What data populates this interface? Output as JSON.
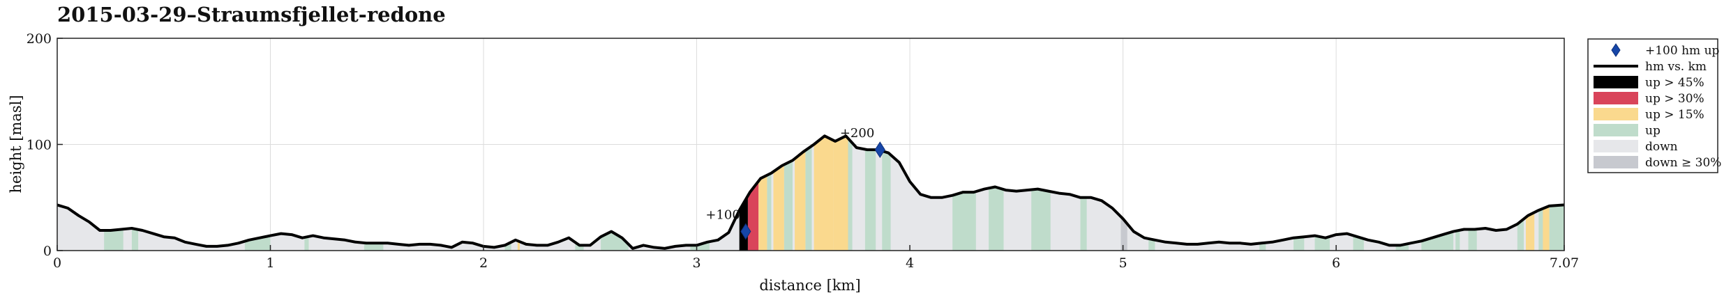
{
  "chart_data": {
    "type": "area",
    "title": "2015-03-29–Straumsfjellet-redone",
    "xlabel": "distance [km]",
    "ylabel": "height [masl]",
    "xlim": [
      0,
      7.07
    ],
    "ylim": [
      0,
      200
    ],
    "xticks": [
      {
        "value": 0,
        "label": "0"
      },
      {
        "value": 1,
        "label": "1"
      },
      {
        "value": 2,
        "label": "2"
      },
      {
        "value": 3,
        "label": "3"
      },
      {
        "value": 4,
        "label": "4"
      },
      {
        "value": 5,
        "label": "5"
      },
      {
        "value": 6,
        "label": "6"
      },
      {
        "value": 7.07,
        "label": "7.07"
      }
    ],
    "yticks": [
      {
        "value": 0,
        "label": "0"
      },
      {
        "value": 100,
        "label": "100"
      },
      {
        "value": 200,
        "label": "200"
      }
    ],
    "grid": true,
    "legend_position": "outside-right",
    "colors": {
      "line": "#000000",
      "up_gt_45": "#000000",
      "up_gt_30": "#d9445a",
      "up_gt_15": "#fad98e",
      "up": "#bfdccb",
      "down": "#e6e7ea",
      "down_ge_30": "#c7c9cf",
      "marker": "#1646a8"
    },
    "profile": {
      "x": [
        0,
        0.05,
        0.1,
        0.15,
        0.2,
        0.25,
        0.3,
        0.35,
        0.4,
        0.45,
        0.5,
        0.55,
        0.6,
        0.65,
        0.7,
        0.75,
        0.8,
        0.85,
        0.9,
        0.95,
        1.0,
        1.05,
        1.1,
        1.15,
        1.2,
        1.25,
        1.3,
        1.35,
        1.4,
        1.45,
        1.5,
        1.55,
        1.6,
        1.65,
        1.7,
        1.75,
        1.8,
        1.85,
        1.9,
        1.95,
        2.0,
        2.05,
        2.1,
        2.15,
        2.2,
        2.25,
        2.3,
        2.35,
        2.4,
        2.45,
        2.5,
        2.55,
        2.6,
        2.65,
        2.7,
        2.75,
        2.8,
        2.85,
        2.9,
        2.95,
        3.0,
        3.05,
        3.1,
        3.15,
        3.2,
        3.25,
        3.3,
        3.35,
        3.4,
        3.45,
        3.5,
        3.55,
        3.6,
        3.65,
        3.7,
        3.75,
        3.8,
        3.85,
        3.9,
        3.95,
        4.0,
        4.05,
        4.1,
        4.15,
        4.2,
        4.25,
        4.3,
        4.35,
        4.4,
        4.45,
        4.5,
        4.55,
        4.6,
        4.65,
        4.7,
        4.75,
        4.8,
        4.85,
        4.9,
        4.95,
        5.0,
        5.05,
        5.1,
        5.15,
        5.2,
        5.25,
        5.3,
        5.35,
        5.4,
        5.45,
        5.5,
        5.55,
        5.6,
        5.65,
        5.7,
        5.75,
        5.8,
        5.85,
        5.9,
        5.95,
        6.0,
        6.05,
        6.1,
        6.15,
        6.2,
        6.25,
        6.3,
        6.35,
        6.4,
        6.45,
        6.5,
        6.55,
        6.6,
        6.65,
        6.7,
        6.75,
        6.8,
        6.85,
        6.9,
        6.95,
        7.0,
        7.07
      ],
      "y": [
        43,
        40,
        33,
        27,
        19,
        19,
        20,
        21,
        19,
        16,
        13,
        12,
        8,
        6,
        4,
        4,
        5,
        7,
        10,
        12,
        14,
        16,
        15,
        12,
        14,
        12,
        11,
        10,
        8,
        7,
        7,
        7,
        6,
        5,
        6,
        6,
        5,
        3,
        8,
        7,
        4,
        3,
        5,
        10,
        6,
        5,
        5,
        8,
        12,
        5,
        5,
        13,
        18,
        12,
        2,
        5,
        3,
        2,
        4,
        5,
        5,
        8,
        10,
        17,
        38,
        55,
        68,
        73,
        80,
        85,
        93,
        100,
        108,
        103,
        108,
        97,
        95,
        95,
        92,
        83,
        65,
        53,
        50,
        50,
        52,
        55,
        55,
        58,
        60,
        57,
        56,
        57,
        58,
        56,
        54,
        53,
        50,
        50,
        47,
        40,
        30,
        18,
        12,
        10,
        8,
        7,
        6,
        6,
        7,
        8,
        7,
        7,
        6,
        7,
        8,
        10,
        12,
        13,
        14,
        12,
        15,
        16,
        13,
        10,
        8,
        5,
        5,
        7,
        9,
        12,
        15,
        18,
        20,
        20,
        21,
        19,
        20,
        25,
        33,
        38,
        42,
        43
      ]
    },
    "bands": [
      {
        "category": "up",
        "ranges": [
          [
            0.22,
            0.31
          ],
          [
            0.35,
            0.38
          ],
          [
            0.88,
            1.0
          ],
          [
            1.16,
            1.18
          ],
          [
            1.44,
            1.53
          ],
          [
            2.1,
            2.13
          ],
          [
            2.43,
            2.47
          ],
          [
            2.55,
            2.68
          ],
          [
            2.97,
            3.06
          ],
          [
            3.33,
            3.35
          ],
          [
            3.41,
            3.45
          ],
          [
            3.51,
            3.54
          ],
          [
            3.71,
            3.73
          ],
          [
            3.79,
            3.84
          ],
          [
            3.87,
            3.91
          ],
          [
            4.2,
            4.31
          ],
          [
            4.37,
            4.44
          ],
          [
            4.57,
            4.66
          ],
          [
            4.8,
            4.83
          ],
          [
            5.12,
            5.15
          ],
          [
            5.64,
            5.67
          ],
          [
            5.8,
            5.85
          ],
          [
            5.9,
            5.97
          ],
          [
            6.08,
            6.13
          ],
          [
            6.28,
            6.34
          ],
          [
            6.4,
            6.55
          ],
          [
            6.56,
            6.58
          ],
          [
            6.62,
            6.66
          ],
          [
            6.85,
            6.88
          ],
          [
            6.95,
            6.97
          ],
          [
            7.0,
            7.07
          ]
        ]
      },
      {
        "category": "up_gt_15",
        "ranges": [
          [
            2.16,
            2.17
          ],
          [
            3.29,
            3.33
          ],
          [
            3.36,
            3.41
          ],
          [
            3.46,
            3.51
          ],
          [
            3.55,
            3.64
          ],
          [
            3.64,
            3.71
          ],
          [
            6.89,
            6.93
          ],
          [
            6.97,
            7.0
          ]
        ]
      },
      {
        "category": "up_gt_30",
        "ranges": [
          [
            3.24,
            3.29
          ]
        ]
      },
      {
        "category": "up_gt_45",
        "ranges": [
          [
            3.2,
            3.24
          ]
        ]
      },
      {
        "category": "down_ge_30",
        "ranges": [
          [
            4.99,
            5.02
          ]
        ]
      }
    ],
    "markers": [
      {
        "x": 3.23,
        "y": 18,
        "label": "+100"
      },
      {
        "x": 3.86,
        "y": 95,
        "label": "+200"
      }
    ],
    "legend": [
      {
        "key": "marker",
        "label": "+100 hm up"
      },
      {
        "key": "line",
        "label": "hm vs. km"
      },
      {
        "key": "up_gt_45",
        "label": "up > 45%"
      },
      {
        "key": "up_gt_30",
        "label": "up > 30%"
      },
      {
        "key": "up_gt_15",
        "label": "up > 15%"
      },
      {
        "key": "up",
        "label": "up"
      },
      {
        "key": "down",
        "label": "down"
      },
      {
        "key": "down_ge_30",
        "label": "down ≥ 30%"
      }
    ]
  }
}
